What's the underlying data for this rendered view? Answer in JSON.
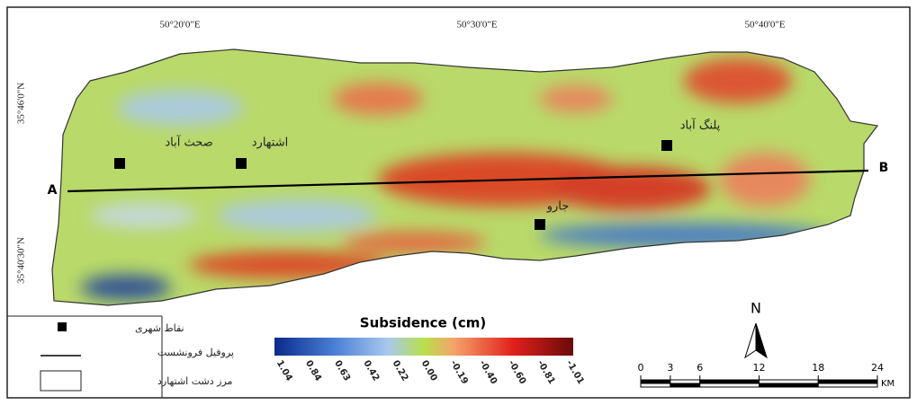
{
  "map": {
    "longitude_labels": [
      "50°20'0\"E",
      "50°30'0\"E",
      "50°40'0\"E"
    ],
    "latitude_labels": [
      "35°46'0\"N",
      "35°40'30\"N"
    ],
    "places": [
      "صحث آباد",
      "اشتهارد",
      "پلنگ آباد",
      "جارو"
    ],
    "profile": {
      "start": "A",
      "end": "B"
    },
    "legend": {
      "items": [
        "نقاط شهری",
        "پروفیل فرونشست",
        "مرز دشت اشتهارد"
      ]
    },
    "colorbar": {
      "title": "Subsidence (cm)",
      "ticks": [
        "1.04",
        "0.84",
        "0.63",
        "0.42",
        "0.22",
        "0.00",
        "-0.19",
        "-0.40",
        "-0.60",
        "-0.81",
        "-1.01"
      ]
    },
    "north": "N",
    "scale_bar": {
      "ticks": [
        0,
        3,
        6,
        12,
        18,
        24
      ],
      "unit": "KM"
    }
  }
}
